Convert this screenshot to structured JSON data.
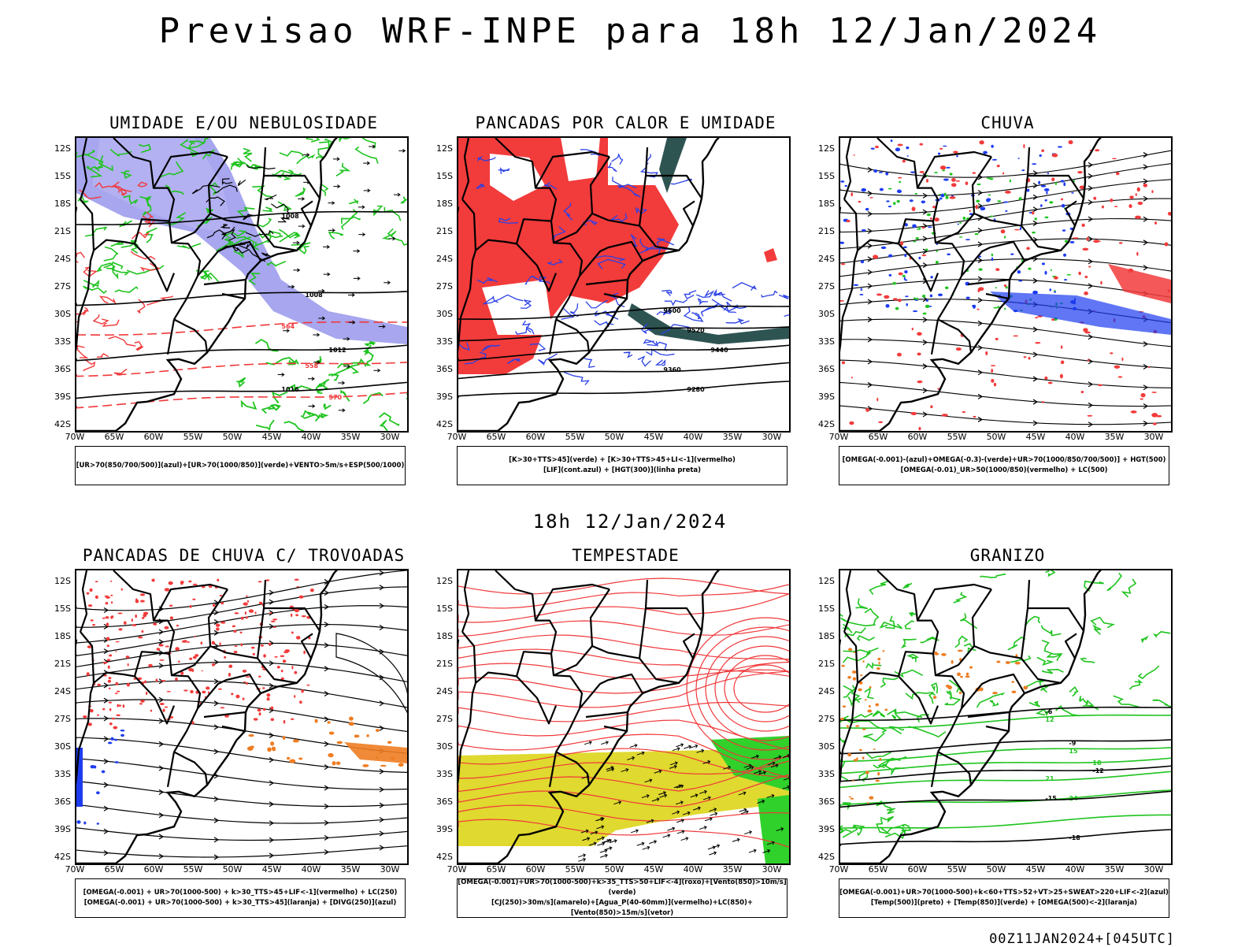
{
  "header": {
    "title": "Previsao WRF-INPE  para 18h 12/Jan/2024"
  },
  "mid_label": "18h 12/Jan/2024",
  "axes": {
    "lat_labels": [
      "12S",
      "15S",
      "18S",
      "21S",
      "24S",
      "27S",
      "30S",
      "33S",
      "36S",
      "39S",
      "42S"
    ],
    "lon_labels": [
      "70W",
      "65W",
      "60W",
      "55W",
      "50W",
      "45W",
      "40W",
      "35W",
      "30W"
    ]
  },
  "panels": [
    {
      "title": "UMIDADE E/OU NEBULOSIDADE",
      "legend": [
        "[UR>70(850/700/500)](azul)+[UR>70(1000/850)](verde)+VENTO>5m/s+ESP(500/1000)"
      ],
      "contour_labels": [
        "1008",
        "1008",
        "1012",
        "1016",
        "1016",
        "1012",
        "1004",
        "1008",
        "1008",
        "1016",
        "1012",
        "576",
        "564",
        "558",
        "570",
        "576"
      ]
    },
    {
      "title": "PANCADAS POR CALOR E UMIDADE",
      "legend": [
        "[K>30+TTS>45](verde) + [K>30+TTS>45+LI<-1](vermelho)",
        "[LIF](cont.azul) + [HGT(300)](linha preta)"
      ],
      "contour_labels": [
        "9600",
        "9520",
        "9440",
        "9360",
        "9280",
        "9280",
        "9360",
        "9440",
        "9520",
        "9600"
      ]
    },
    {
      "title": "CHUVA",
      "legend": [
        "[OMEGA(-0.001)-(azul)+OMEGA(-0.3)-(verde)+UR>70(1000/850/700/500)] + HGT(500)",
        "[OMEGA(-0.01)_UR>50(1000/850)(vermelho) + LC(500)"
      ],
      "contour_labels": [
        "582",
        "579",
        "576",
        "573",
        "570",
        "567",
        "564",
        "585",
        "588"
      ]
    },
    {
      "title": "PANCADAS DE CHUVA C/ TROVOADAS",
      "legend": [
        "[OMEGA(-0.001) + UR>70(1000-500) + k>30_TTS>45+LIF<-1](vermelho) + LC(250)",
        "[OMEGA(-0.001) + UR>70(1000-500) + k>30_TTS>45](laranja) + [DIVG(250)](azul)"
      ],
      "contour_labels": []
    },
    {
      "title": "TEMPESTADE",
      "legend": [
        "[OMEGA(-0.001)+UR>70(1000-500)+k>35_TTS>50+LIF<-4](roxo)+[Vento(850)>10m/s](verde)",
        "[CJ(250)>30m/s](amarelo)+[Agua_P(40-60mm)](vermelho)+LC(850)+[Vento(850)>15m/s](vetor)"
      ],
      "contour_labels": [
        "40"
      ]
    },
    {
      "title": "GRANIZO",
      "legend": [
        "[OMEGA(-0.001)+UR>70(1000-500)+k<60+TTS>52+VT>25+SWEAT>220+LIF<-2](azul)",
        "[Temp(500)](preto) + [Temp(850)](verde) + [OMEGA(500)<-2](laranja)"
      ],
      "contour_labels": [
        "-6",
        "-9",
        "-12",
        "-15",
        "-18",
        "12",
        "15",
        "18",
        "21",
        "24"
      ]
    }
  ],
  "footer": "00Z11JAN2024+[045UTC]",
  "colors": {
    "blue_region": "#8a88e8",
    "green_contour": "#1fc41f",
    "red_contour": "#f0383a",
    "red_fill": "#f23b3b",
    "dark_fill": "#2e5452",
    "yellow_fill": "#e0d92f",
    "orange": "#ee7d22",
    "blue_dot": "#1d3cf0"
  }
}
